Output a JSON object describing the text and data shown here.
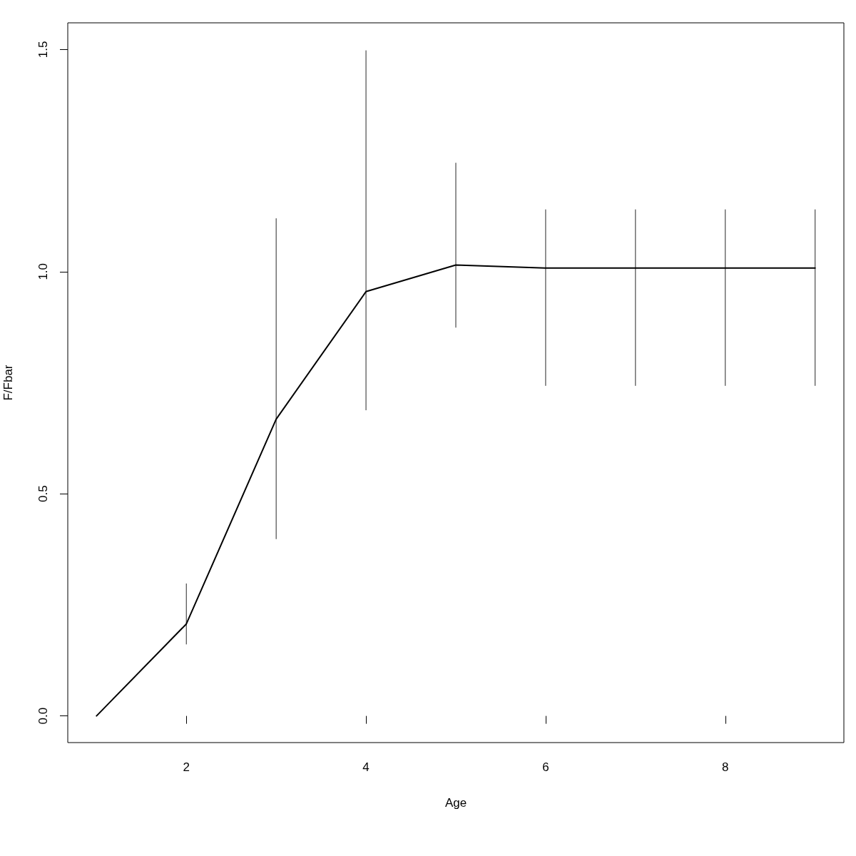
{
  "chart_data": {
    "type": "line",
    "xlabel": "Age",
    "ylabel": "F/Fbar",
    "x": [
      1,
      2,
      3,
      4,
      5,
      6,
      7,
      8,
      9
    ],
    "values": [
      0,
      0.207,
      0.668,
      0.955,
      1.015,
      1.008,
      1.008,
      1.008,
      1.008
    ],
    "errors": [
      null,
      [
        0.161,
        0.298
      ],
      [
        0.398,
        1.12
      ],
      [
        0.688,
        1.498
      ],
      [
        0.874,
        1.245
      ],
      [
        0.743,
        1.14
      ],
      [
        0.743,
        1.14
      ],
      [
        0.743,
        1.14
      ],
      [
        0.743,
        1.14
      ]
    ],
    "color": "#000000",
    "marker": "none",
    "line_style": "solid",
    "xlim": [
      0.68,
      9.32
    ],
    "ylim": [
      -0.06,
      1.56
    ],
    "xticks": [
      2,
      4,
      6,
      8
    ],
    "yticks": [
      {
        "value": 0,
        "label": "0.0"
      },
      0.5,
      {
        "value": 1,
        "label": "1.0"
      },
      1.5
    ]
  }
}
